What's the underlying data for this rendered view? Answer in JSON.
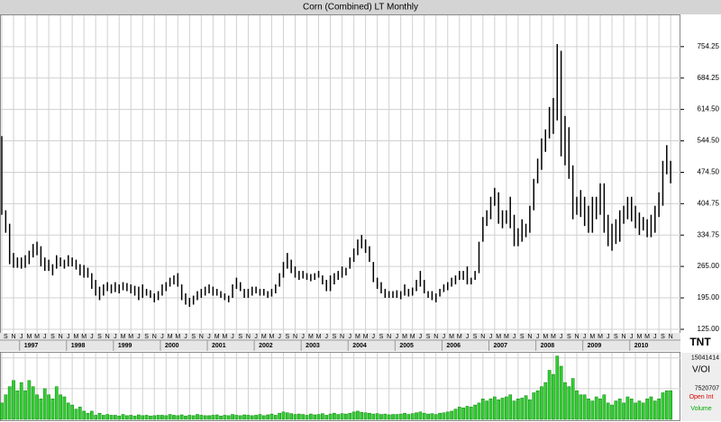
{
  "chart_data": {
    "type": "ohlc",
    "title": "Corn (Combined) LT Monthly",
    "logo": "TNT",
    "color": "#000000",
    "grid": true,
    "x": [
      "1996-08",
      "1996-09",
      "1996-10",
      "1996-11",
      "1996-12",
      "1997-01",
      "1997-02",
      "1997-03",
      "1997-04",
      "1997-05",
      "1997-06",
      "1997-07",
      "1997-08",
      "1997-09",
      "1997-10",
      "1997-11",
      "1997-12",
      "1998-01",
      "1998-02",
      "1998-03",
      "1998-04",
      "1998-05",
      "1998-06",
      "1998-07",
      "1998-08",
      "1998-09",
      "1998-10",
      "1998-11",
      "1998-12",
      "1999-01",
      "1999-02",
      "1999-03",
      "1999-04",
      "1999-05",
      "1999-06",
      "1999-07",
      "1999-08",
      "1999-09",
      "1999-10",
      "1999-11",
      "1999-12",
      "2000-01",
      "2000-02",
      "2000-03",
      "2000-04",
      "2000-05",
      "2000-06",
      "2000-07",
      "2000-08",
      "2000-09",
      "2000-10",
      "2000-11",
      "2000-12",
      "2001-01",
      "2001-02",
      "2001-03",
      "2001-04",
      "2001-05",
      "2001-06",
      "2001-07",
      "2001-08",
      "2001-09",
      "2001-10",
      "2001-11",
      "2001-12",
      "2002-01",
      "2002-02",
      "2002-03",
      "2002-04",
      "2002-05",
      "2002-06",
      "2002-07",
      "2002-08",
      "2002-09",
      "2002-10",
      "2002-11",
      "2002-12",
      "2003-01",
      "2003-02",
      "2003-03",
      "2003-04",
      "2003-05",
      "2003-06",
      "2003-07",
      "2003-08",
      "2003-09",
      "2003-10",
      "2003-11",
      "2003-12",
      "2004-01",
      "2004-02",
      "2004-03",
      "2004-04",
      "2004-05",
      "2004-06",
      "2004-07",
      "2004-08",
      "2004-09",
      "2004-10",
      "2004-11",
      "2004-12",
      "2005-01",
      "2005-02",
      "2005-03",
      "2005-04",
      "2005-05",
      "2005-06",
      "2005-07",
      "2005-08",
      "2005-09",
      "2005-10",
      "2005-11",
      "2005-12",
      "2006-01",
      "2006-02",
      "2006-03",
      "2006-04",
      "2006-05",
      "2006-06",
      "2006-07",
      "2006-08",
      "2006-09",
      "2006-10",
      "2006-11",
      "2006-12",
      "2007-01",
      "2007-02",
      "2007-03",
      "2007-04",
      "2007-05",
      "2007-06",
      "2007-07",
      "2007-08",
      "2007-09",
      "2007-10",
      "2007-11",
      "2007-12",
      "2008-01",
      "2008-02",
      "2008-03",
      "2008-04",
      "2008-05",
      "2008-06",
      "2008-07",
      "2008-08",
      "2008-09",
      "2008-10",
      "2008-11",
      "2008-12",
      "2009-01",
      "2009-02",
      "2009-03",
      "2009-04",
      "2009-05",
      "2009-06",
      "2009-07",
      "2009-08",
      "2009-09",
      "2009-10",
      "2009-11",
      "2009-12",
      "2010-01",
      "2010-02",
      "2010-03",
      "2010-04",
      "2010-05",
      "2010-06",
      "2010-07",
      "2010-08",
      "2010-09",
      "2010-10",
      "2010-11"
    ],
    "month_labels": [
      null,
      "S",
      null,
      "N",
      null,
      "J",
      null,
      "M",
      null,
      "M",
      null,
      "J",
      null,
      "S",
      null,
      "N",
      null,
      "J",
      null,
      "M",
      null,
      "M",
      null,
      "J",
      null,
      "S",
      null,
      "N",
      null,
      "J",
      null,
      "M",
      null,
      "M",
      null,
      "J",
      null,
      "S",
      null,
      "N",
      null,
      "J",
      null,
      "M",
      null,
      "M",
      null,
      "J",
      null,
      "S",
      null,
      "N",
      null,
      "J",
      null,
      "M",
      null,
      "M",
      null,
      "J",
      null,
      "S",
      null,
      "N",
      null,
      "J",
      null,
      "M",
      null,
      "M",
      null,
      "J",
      null,
      "S",
      null,
      "N",
      null,
      "J",
      null,
      "M",
      null,
      "M",
      null,
      "J",
      null,
      "S",
      null,
      "N",
      null,
      "J",
      null,
      "M",
      null,
      "M",
      null,
      "J",
      null,
      "S",
      null,
      "N",
      null,
      "J",
      null,
      "M",
      null,
      "M",
      null,
      "J",
      null,
      "S",
      null,
      "N",
      null,
      "J",
      null,
      "M",
      null,
      "M",
      null,
      "J",
      null,
      "S",
      null,
      "N",
      null,
      "J",
      null,
      "M",
      null,
      "M",
      null,
      "J",
      null,
      "S",
      null,
      "N",
      null,
      "J",
      null,
      "M",
      null,
      "M",
      null,
      "J",
      null,
      "S",
      null,
      "N",
      null,
      "J",
      null,
      "M",
      null,
      "M",
      null,
      "J",
      null,
      "S",
      null,
      "N",
      null,
      "J",
      null,
      "M",
      null,
      "M",
      null,
      "J",
      null,
      "S",
      null,
      "N"
    ],
    "year_labels": [
      "1997",
      "1998",
      "1999",
      "2000",
      "2001",
      "2002",
      "2003",
      "2004",
      "2005",
      "2006",
      "2007",
      "2008",
      "2009",
      "2010"
    ],
    "high": [
      555,
      390,
      360,
      295,
      285,
      285,
      290,
      300,
      315,
      320,
      310,
      285,
      280,
      270,
      290,
      285,
      280,
      290,
      285,
      280,
      270,
      268,
      262,
      250,
      235,
      220,
      225,
      230,
      225,
      230,
      225,
      230,
      228,
      225,
      222,
      220,
      225,
      215,
      212,
      205,
      210,
      225,
      230,
      240,
      245,
      250,
      225,
      205,
      195,
      200,
      210,
      215,
      220,
      225,
      220,
      215,
      210,
      205,
      200,
      225,
      240,
      230,
      215,
      215,
      220,
      220,
      215,
      215,
      210,
      215,
      225,
      250,
      275,
      295,
      280,
      265,
      255,
      255,
      250,
      248,
      250,
      255,
      245,
      235,
      245,
      250,
      255,
      265,
      262,
      285,
      305,
      325,
      335,
      325,
      310,
      275,
      240,
      230,
      215,
      210,
      210,
      212,
      210,
      225,
      215,
      218,
      235,
      255,
      235,
      210,
      210,
      205,
      215,
      225,
      230,
      240,
      245,
      255,
      255,
      265,
      240,
      255,
      320,
      375,
      390,
      420,
      440,
      430,
      390,
      390,
      420,
      380,
      350,
      370,
      360,
      400,
      460,
      505,
      550,
      570,
      620,
      640,
      760,
      745,
      600,
      575,
      490,
      420,
      435,
      420,
      400,
      420,
      420,
      450,
      450,
      380,
      360,
      370,
      390,
      400,
      420,
      420,
      400,
      385,
      375,
      370,
      380,
      400,
      430,
      500,
      535,
      500
    ],
    "low": [
      380,
      340,
      270,
      262,
      262,
      260,
      262,
      270,
      285,
      290,
      265,
      255,
      255,
      245,
      260,
      265,
      260,
      265,
      265,
      258,
      245,
      240,
      240,
      215,
      200,
      190,
      200,
      210,
      205,
      208,
      205,
      212,
      210,
      205,
      200,
      190,
      195,
      200,
      195,
      185,
      190,
      200,
      210,
      220,
      225,
      220,
      190,
      180,
      175,
      180,
      190,
      195,
      200,
      205,
      200,
      200,
      195,
      190,
      185,
      195,
      215,
      210,
      195,
      195,
      200,
      205,
      200,
      200,
      195,
      198,
      205,
      220,
      240,
      260,
      250,
      240,
      235,
      238,
      235,
      232,
      235,
      240,
      225,
      210,
      210,
      225,
      235,
      240,
      245,
      260,
      275,
      290,
      305,
      295,
      275,
      230,
      215,
      205,
      195,
      195,
      195,
      195,
      192,
      200,
      198,
      200,
      210,
      220,
      205,
      195,
      190,
      185,
      198,
      208,
      212,
      220,
      225,
      235,
      235,
      225,
      225,
      235,
      250,
      320,
      355,
      370,
      400,
      360,
      350,
      360,
      350,
      310,
      310,
      320,
      330,
      340,
      390,
      450,
      480,
      520,
      550,
      560,
      590,
      510,
      490,
      460,
      370,
      380,
      375,
      355,
      340,
      340,
      370,
      380,
      340,
      310,
      300,
      315,
      320,
      360,
      370,
      365,
      350,
      335,
      345,
      330,
      330,
      340,
      375,
      400,
      470,
      450
    ],
    "ylim": [
      117,
      824
    ],
    "yticks": [
      {
        "value": 125,
        "label": "125.00"
      },
      {
        "value": 195,
        "label": "195.00"
      },
      {
        "value": 265,
        "label": "265.00"
      },
      334.75,
      404.75,
      {
        "value": 474.5,
        "label": "474.50"
      },
      {
        "value": 544.5,
        "label": "544.50"
      },
      {
        "value": 614.5,
        "label": "614.50"
      },
      684.25,
      754.25
    ],
    "volume": {
      "title": "V/OI",
      "color": "#33cc33",
      "ylim": [
        0,
        16300000
      ],
      "yticks": [
        7520707,
        15041414
      ],
      "legend": [
        {
          "name": "Open Int",
          "color": "#dd0000"
        },
        {
          "name": "Volume",
          "color": "#00aa00"
        }
      ],
      "values": [
        4000000,
        6000000,
        8000000,
        9500000,
        7000000,
        9000000,
        7000000,
        9500000,
        8000000,
        6000000,
        5000000,
        7500000,
        6000000,
        5000000,
        8000000,
        6000000,
        5500000,
        4000000,
        3500000,
        2500000,
        3000000,
        2000000,
        1500000,
        2000000,
        1000000,
        1500000,
        1000000,
        1200000,
        1000000,
        1000000,
        800000,
        1200000,
        900000,
        1000000,
        800000,
        1100000,
        900000,
        1000000,
        800000,
        900000,
        1000000,
        1000000,
        900000,
        1200000,
        1000000,
        900000,
        1100000,
        800000,
        1000000,
        900000,
        1200000,
        1000000,
        900000,
        900000,
        1000000,
        1100000,
        800000,
        1000000,
        900000,
        1200000,
        1000000,
        900000,
        1100000,
        1000000,
        900000,
        1000000,
        1200000,
        900000,
        1100000,
        1300000,
        1000000,
        1500000,
        1800000,
        1600000,
        1400000,
        1200000,
        1300000,
        1200000,
        1000000,
        1300000,
        1100000,
        1200000,
        1400000,
        1000000,
        1300000,
        1500000,
        1200000,
        1400000,
        1300000,
        1500000,
        1800000,
        2000000,
        1700000,
        1600000,
        1500000,
        1300000,
        1400000,
        1200000,
        1300000,
        1100000,
        1200000,
        1200000,
        1300000,
        1500000,
        1200000,
        1400000,
        1600000,
        1800000,
        1500000,
        1300000,
        1400000,
        1200000,
        1500000,
        1600000,
        1800000,
        2000000,
        2500000,
        3000000,
        2800000,
        3200000,
        3000000,
        3500000,
        4000000,
        5000000,
        4500000,
        5000000,
        5500000,
        4800000,
        5200000,
        5500000,
        6000000,
        4500000,
        5000000,
        5200000,
        5800000,
        4800000,
        6500000,
        7000000,
        8000000,
        9000000,
        12000000,
        11000000,
        15500000,
        13000000,
        9000000,
        8000000,
        10000000,
        7000000,
        6000000,
        6000000,
        5000000,
        4500000,
        5500000,
        5000000,
        6000000,
        4000000,
        3500000,
        4500000,
        5000000,
        4000000,
        5500000,
        5000000,
        4000000,
        4500000,
        4000000,
        5000000,
        5500000,
        4500000,
        5000000,
        6500000,
        7000000,
        7000000
      ]
    }
  }
}
